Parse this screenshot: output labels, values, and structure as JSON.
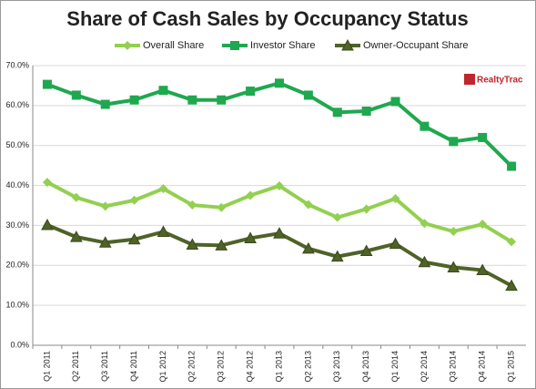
{
  "chart_data": {
    "type": "line",
    "title": "Share of Cash Sales by Occupancy Status",
    "logo": "RealtyTrac",
    "categories": [
      "Q1 2011",
      "Q2 2011",
      "Q3 2011",
      "Q4 2011",
      "Q1 2012",
      "Q2 2012",
      "Q3 2012",
      "Q4 2012",
      "Q1 2013",
      "Q2 2013",
      "Q3 2013",
      "Q4 2013",
      "Q1 2014",
      "Q2 2014",
      "Q3 2014",
      "Q4 2014",
      "Q1 2015"
    ],
    "series": [
      {
        "name": "Overall Share",
        "color": "#92d050",
        "marker": "diamond",
        "values": [
          40.8,
          37.0,
          34.8,
          36.3,
          39.2,
          35.1,
          34.5,
          37.5,
          39.9,
          35.2,
          32.0,
          34.1,
          36.7,
          30.5,
          28.5,
          30.3,
          25.9
        ]
      },
      {
        "name": "Investor Share",
        "color": "#1fa84f",
        "marker": "square",
        "values": [
          65.3,
          62.6,
          60.3,
          61.4,
          63.8,
          61.4,
          61.4,
          63.6,
          65.6,
          62.6,
          58.3,
          58.6,
          61.0,
          54.8,
          51.0,
          52.0,
          44.8
        ]
      },
      {
        "name": "Owner-Occupant Share",
        "color": "#4f6228",
        "marker": "triangle",
        "values": [
          30.1,
          27.1,
          25.7,
          26.5,
          28.4,
          25.2,
          25.0,
          26.8,
          28.0,
          24.2,
          22.2,
          23.6,
          25.4,
          20.8,
          19.5,
          18.8,
          14.9
        ]
      }
    ],
    "ylim": [
      0,
      70
    ],
    "yticks": [
      {
        "value": 0,
        "label": "0.0%"
      },
      {
        "value": 10,
        "label": "10.0%"
      },
      {
        "value": 20,
        "label": "20.0%"
      },
      {
        "value": 30,
        "label": "30.0%"
      },
      {
        "value": 40,
        "label": "40.0%"
      },
      {
        "value": 50,
        "label": "50.0%"
      },
      {
        "value": 60,
        "label": "60.0%"
      },
      {
        "value": 70,
        "label": "70.0%"
      }
    ],
    "grid": true,
    "legend": "top"
  }
}
